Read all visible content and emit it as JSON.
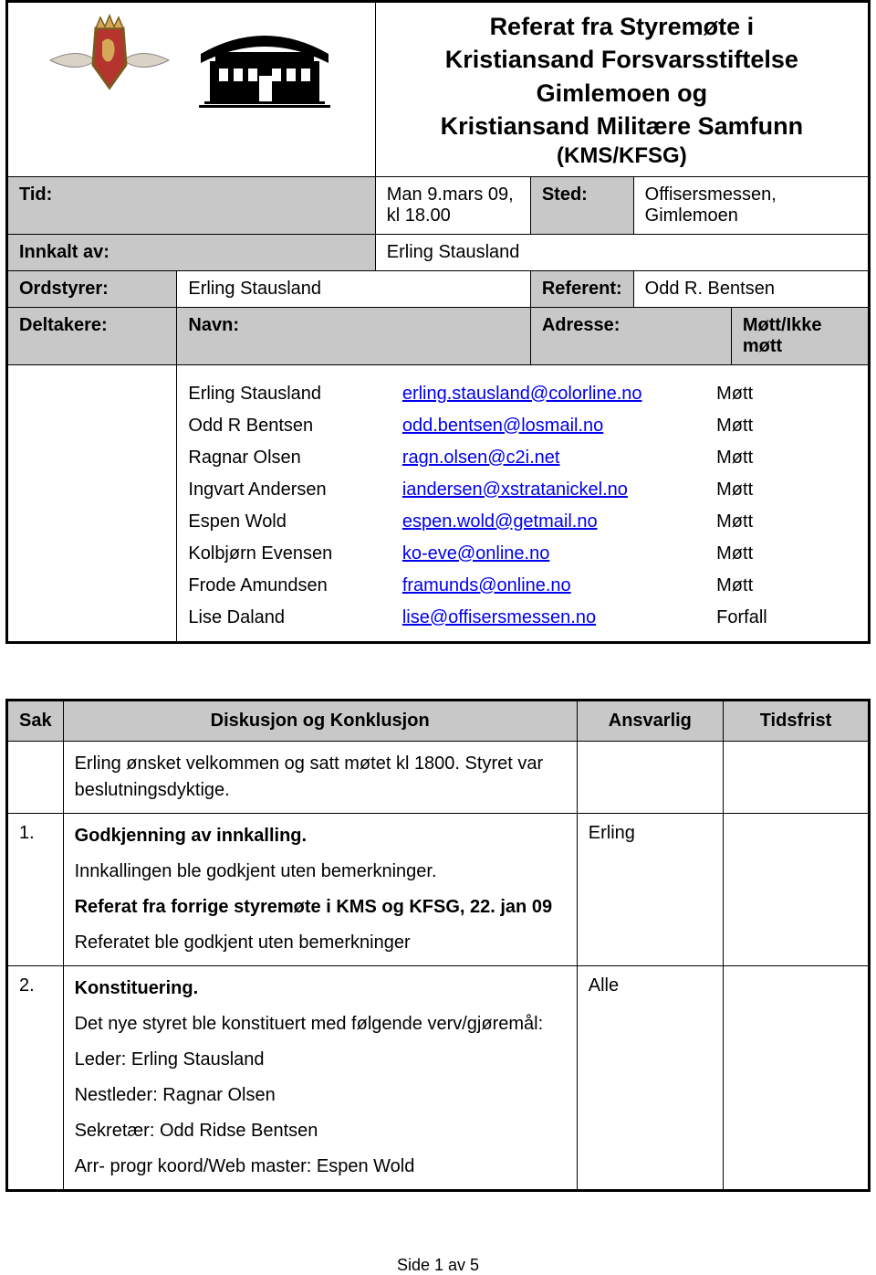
{
  "header": {
    "title_lines": [
      "Referat fra Styremøte i",
      "Kristiansand Forsvarsstiftelse Gimlemoen og",
      "Kristiansand Militære Samfunn"
    ],
    "subtitle": "(KMS/KFSG)"
  },
  "meta": {
    "tid_label": "Tid:",
    "tid_value_line1": "Man 9.mars 09,",
    "tid_value_line2": "kl 18.00",
    "sted_label": "Sted:",
    "sted_line1": "Offisersmessen,",
    "sted_line2": "Gimlemoen",
    "innkalt_label": "Innkalt av:",
    "innkalt_value": "Erling Stausland",
    "ordstyrer_label": "Ordstyrer:",
    "ordstyrer_value": "Erling Stausland",
    "referent_label": "Referent:",
    "referent_value": "Odd R. Bentsen",
    "deltakere_label": "Deltakere:",
    "navn_label": "Navn:",
    "adresse_label": "Adresse:",
    "status_label": "Møtt/Ikke møtt"
  },
  "participants": [
    {
      "name": "Erling Stausland",
      "email": "erling.stausland@colorline.no",
      "status": "Møtt"
    },
    {
      "name": "Odd R Bentsen",
      "email": "odd.bentsen@losmail.no",
      "status": "Møtt"
    },
    {
      "name": "Ragnar Olsen",
      "email": "ragn.olsen@c2i.net",
      "status": "Møtt"
    },
    {
      "name": "Ingvart Andersen",
      "email": "iandersen@xstratanickel.no",
      "status": "Møtt"
    },
    {
      "name": "Espen Wold",
      "email": "espen.wold@getmail.no",
      "status": "Møtt"
    },
    {
      "name": "Kolbjørn Evensen",
      "email": "ko-eve@online.no",
      "status": "Møtt"
    },
    {
      "name": "Frode Amundsen",
      "email": "framunds@online.no",
      "status": "Møtt"
    },
    {
      "name": "Lise Daland",
      "email": "lise@offisersmessen.no",
      "status": "Forfall"
    }
  ],
  "sak_header": {
    "sak": "Sak",
    "diskusjon": "Diskusjon og Konklusjon",
    "ansvarlig": "Ansvarlig",
    "tidsfrist": "Tidsfrist"
  },
  "sak_rows": [
    {
      "num": "",
      "lines": [
        {
          "text": "Erling ønsket velkommen og satt møtet kl 1800. Styret var beslutningsdyktige.",
          "bold": false
        }
      ],
      "ansvarlig": "",
      "tidsfrist": ""
    },
    {
      "num": "1.",
      "lines": [
        {
          "text": "Godkjenning av innkalling.",
          "bold": true
        },
        {
          "text": "Innkallingen ble godkjent uten bemerkninger.",
          "bold": false
        },
        {
          "text": "Referat fra forrige styremøte i KMS og KFSG, 22. jan 09",
          "bold": true
        },
        {
          "text": "Referatet ble godkjent uten bemerkninger",
          "bold": false
        }
      ],
      "ansvarlig": "Erling",
      "tidsfrist": ""
    },
    {
      "num": "2.",
      "lines": [
        {
          "text": "Konstituering.",
          "bold": true
        },
        {
          "text": "Det nye styret ble konstituert med følgende verv/gjøremål:",
          "bold": false
        },
        {
          "text": "Leder: Erling Stausland",
          "bold": false
        },
        {
          "text": "Nestleder: Ragnar Olsen",
          "bold": false
        },
        {
          "text": "Sekretær: Odd Ridse Bentsen",
          "bold": false
        },
        {
          "text": "Arr- progr koord/Web master: Espen Wold",
          "bold": false
        }
      ],
      "ansvarlig": "Alle",
      "tidsfrist": ""
    }
  ],
  "footer": "Side 1 av 5",
  "colors": {
    "grey": "#c8c8c8",
    "border": "#000000",
    "link": "#0000ee",
    "crest_red": "#b5342e",
    "crest_gold": "#d4a856",
    "ribbon": "#d9d2c5"
  }
}
